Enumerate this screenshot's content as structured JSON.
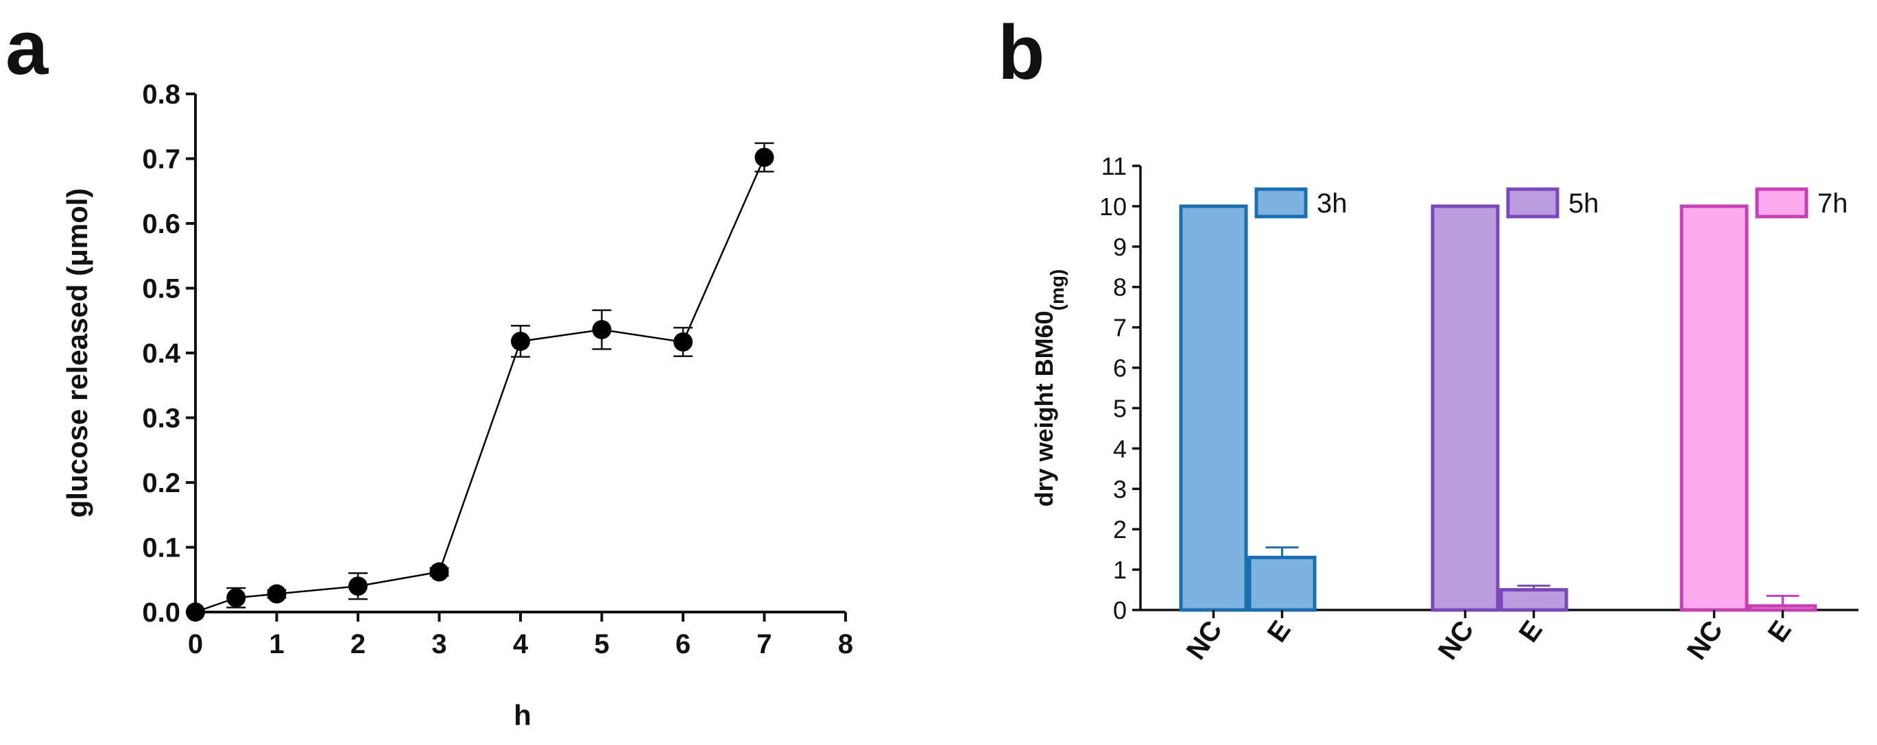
{
  "panels": {
    "a": {
      "letter": "a"
    },
    "b": {
      "letter": "b"
    }
  },
  "chart_data": [
    {
      "id": "a",
      "type": "line",
      "title": "",
      "xlabel": "h",
      "ylabel": "glucose released (μmol)",
      "xlim": [
        0,
        8
      ],
      "ylim": [
        0,
        0.8
      ],
      "xticks": [
        "0",
        "1",
        "2",
        "3",
        "4",
        "5",
        "6",
        "7",
        "8"
      ],
      "yticks": [
        "0.0",
        "0.1",
        "0.2",
        "0.3",
        "0.4",
        "0.5",
        "0.6",
        "0.7",
        "0.8"
      ],
      "grid": false,
      "series": [
        {
          "name": "glucose released",
          "color": "#000000",
          "x": [
            0,
            0.5,
            1,
            2,
            3,
            4,
            5,
            6,
            7
          ],
          "y": [
            0.0,
            0.022,
            0.028,
            0.04,
            0.062,
            0.418,
            0.436,
            0.417,
            0.702
          ],
          "err": [
            0,
            0.015,
            0.006,
            0.02,
            0.006,
            0.024,
            0.03,
            0.022,
            0.022
          ]
        }
      ]
    },
    {
      "id": "b",
      "type": "bar",
      "title": "",
      "xlabel": "",
      "ylabel": "dry weight BM60",
      "ylabel_sub": "(mg)",
      "ylim": [
        0,
        11
      ],
      "yticks": [
        "0",
        "1",
        "2",
        "3",
        "4",
        "5",
        "6",
        "7",
        "8",
        "9",
        "10",
        "11"
      ],
      "grid": false,
      "legend_position": "inline-top",
      "groups": [
        {
          "name": "3h",
          "fill": "#7fb3df",
          "stroke": "#1a6eb0",
          "bars": [
            {
              "category": "NC",
              "value": 10,
              "err": 0
            },
            {
              "category": "E",
              "value": 1.3,
              "err": 0.25
            }
          ]
        },
        {
          "name": "5h",
          "fill": "#bb9ddf",
          "stroke": "#7a48b8",
          "bars": [
            {
              "category": "NC",
              "value": 10,
              "err": 0
            },
            {
              "category": "E",
              "value": 0.5,
              "err": 0.1
            }
          ]
        },
        {
          "name": "7h",
          "fill": "#fdaaee",
          "stroke": "#c73fb5",
          "bars": [
            {
              "category": "NC",
              "value": 10,
              "err": 0
            },
            {
              "category": "E",
              "value": 0.1,
              "err": 0.25
            }
          ]
        }
      ]
    }
  ]
}
